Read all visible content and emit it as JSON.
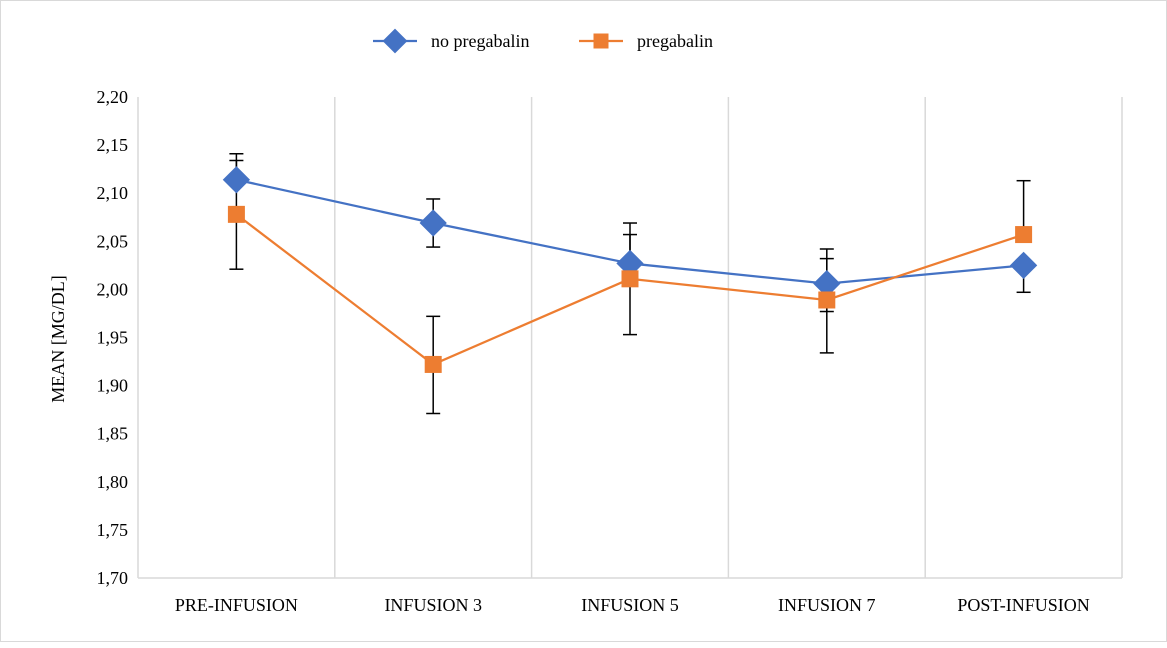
{
  "chart_data": {
    "type": "line",
    "title": "",
    "xlabel": "",
    "ylabel": "MEAN [MG/DL]",
    "categories": [
      "PRE-INFUSION",
      "INFUSION 3",
      "INFUSION 5",
      "INFUSION 7",
      "POST-INFUSION"
    ],
    "ylim": [
      1.7,
      2.2
    ],
    "ytick_step": 0.05,
    "ytick_labels": [
      "1,70",
      "1,75",
      "1,80",
      "1,85",
      "1,90",
      "1,95",
      "2,00",
      "2,05",
      "2,10",
      "2,15",
      "2,20"
    ],
    "grid": "vertical category separators",
    "legend_position": "top-center",
    "series": [
      {
        "name": "no pregabalin",
        "color": "#4472c4",
        "marker": "diamond",
        "values": [
          2.114,
          2.069,
          2.027,
          2.006,
          2.025
        ],
        "error_upper": [
          2.141,
          2.094,
          2.069,
          2.042,
          2.025
        ],
        "error_lower": [
          2.114,
          2.044,
          2.027,
          1.977,
          1.997
        ]
      },
      {
        "name": "pregabalin",
        "color": "#ed7d31",
        "marker": "square",
        "values": [
          2.078,
          1.922,
          2.011,
          1.989,
          2.057
        ],
        "error_upper": [
          2.134,
          1.972,
          2.057,
          2.032,
          2.113
        ],
        "error_lower": [
          2.021,
          1.871,
          1.953,
          1.934,
          2.057
        ]
      }
    ]
  }
}
